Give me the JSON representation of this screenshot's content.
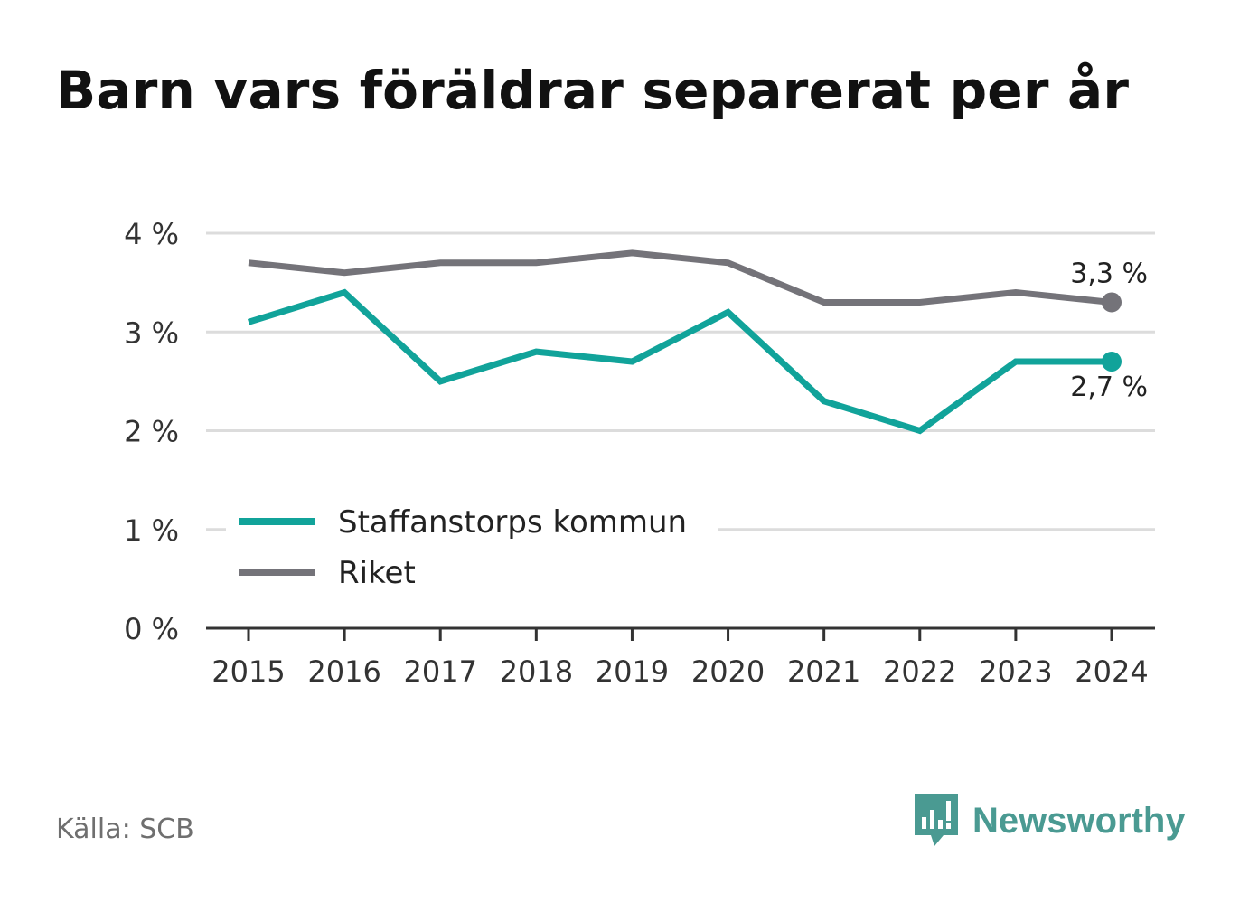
{
  "title": "Barn vars föräldrar separerat per år",
  "source": "Källa: SCB",
  "brand": {
    "name": "Newsworthy",
    "icon": "newsworthy-logo-icon"
  },
  "colors": {
    "staffanstorp": "#11a39a",
    "riket": "#747379",
    "grid": "#dcdcdc",
    "axis": "#333333",
    "brand": "#4a9a92"
  },
  "chart_data": {
    "type": "line",
    "x": [
      "2015",
      "2016",
      "2017",
      "2018",
      "2019",
      "2020",
      "2021",
      "2022",
      "2023",
      "2024"
    ],
    "ylim": [
      0,
      4
    ],
    "yticks": [
      {
        "value": 0,
        "label": "0 %"
      },
      {
        "value": 1,
        "label": "1 %"
      },
      {
        "value": 2,
        "label": "2 %"
      },
      {
        "value": 3,
        "label": "3 %"
      },
      {
        "value": 4,
        "label": "4 %"
      }
    ],
    "grid": true,
    "legend": "bottom-left",
    "series": [
      {
        "name": "Staffanstorps kommun",
        "color": "#11a39a",
        "values": [
          3.1,
          3.4,
          2.5,
          2.8,
          2.7,
          3.2,
          2.3,
          2.0,
          2.7,
          2.7
        ],
        "end_label": "2,7 %"
      },
      {
        "name": "Riket",
        "color": "#747379",
        "values": [
          3.7,
          3.6,
          3.7,
          3.7,
          3.8,
          3.7,
          3.3,
          3.3,
          3.4,
          3.3
        ],
        "end_label": "3,3 %"
      }
    ]
  }
}
